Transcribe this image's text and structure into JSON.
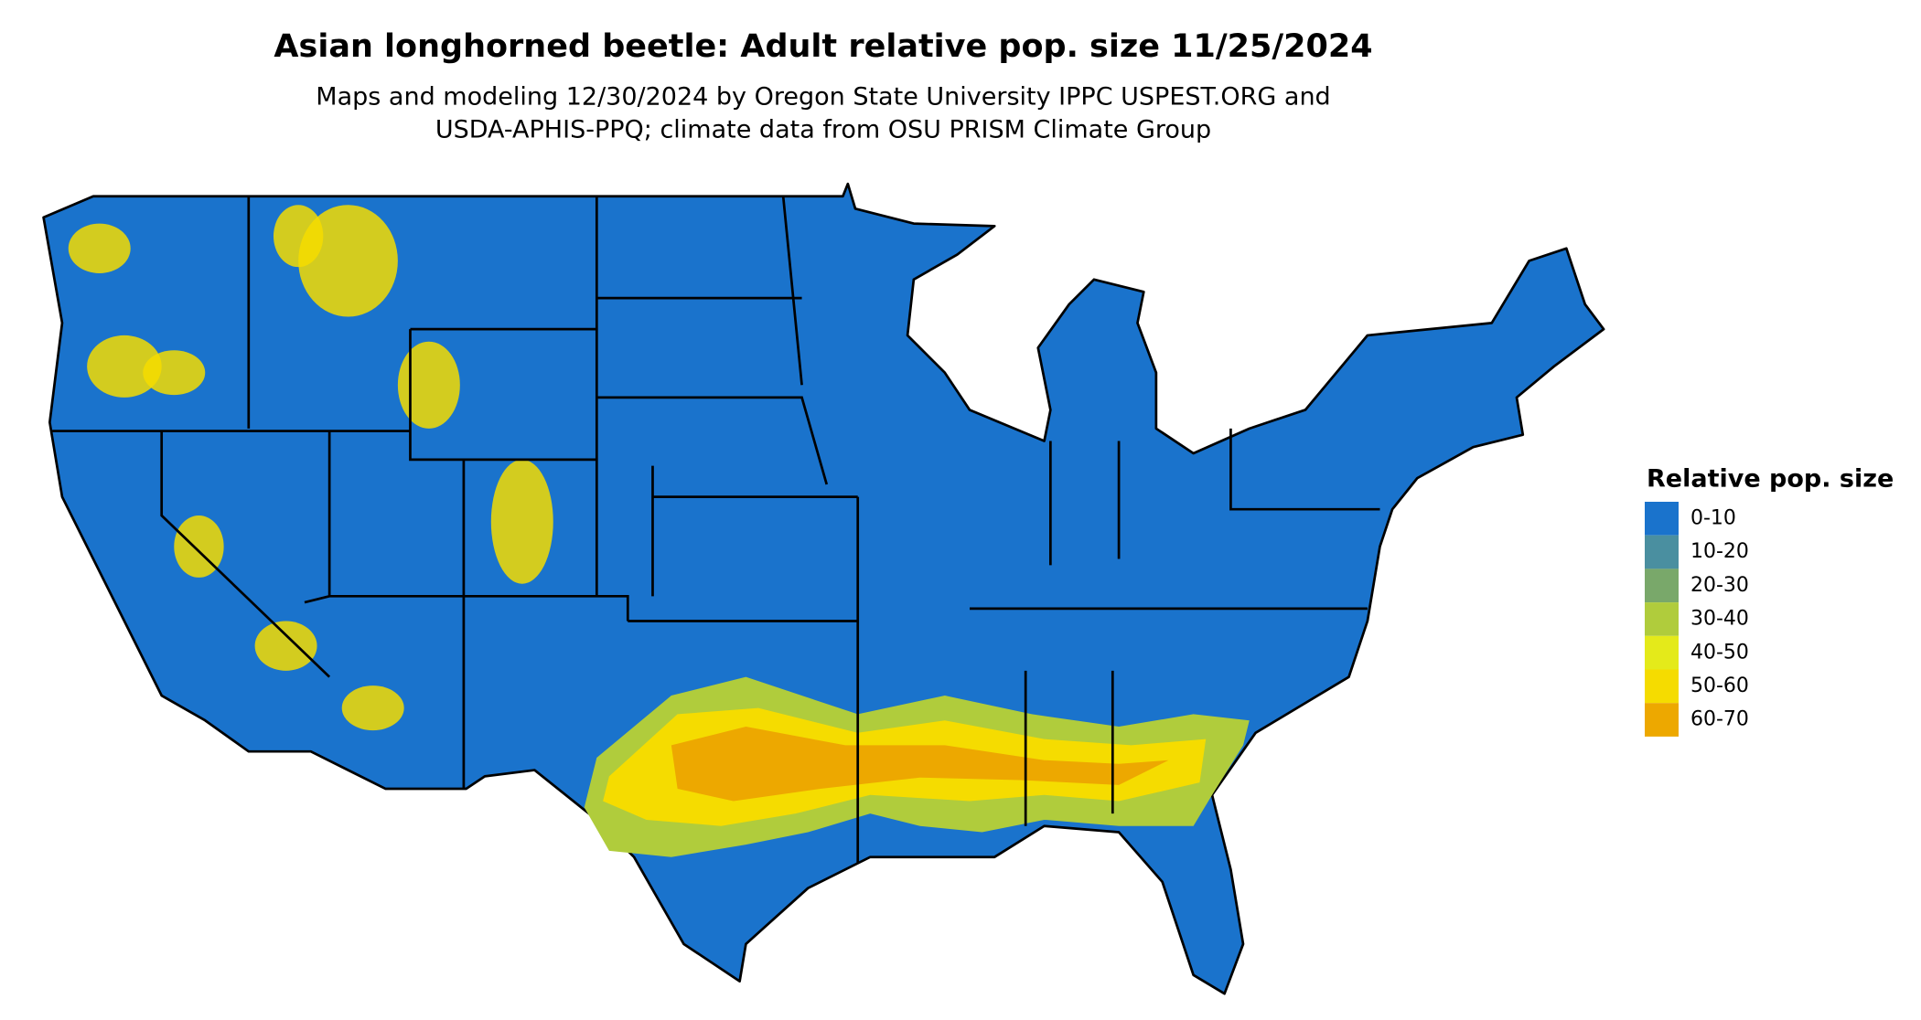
{
  "title": "Asian longhorned beetle: Adult relative pop. size 11/25/2024",
  "subtitle": [
    "Maps and modeling 12/30/2024 by Oregon State University IPPC USPEST.ORG and",
    "USDA-APHIS-PPQ; climate data from OSU PRISM Climate Group"
  ],
  "legend": {
    "title": "Relative pop. size",
    "items": [
      {
        "label": "0-10",
        "color": "#1a73cc"
      },
      {
        "label": "10-20",
        "color": "#4a8fa0"
      },
      {
        "label": "20-30",
        "color": "#79a86a"
      },
      {
        "label": "30-40",
        "color": "#b0cc3c"
      },
      {
        "label": "40-50",
        "color": "#e4ea1a"
      },
      {
        "label": "50-60",
        "color": "#f5dc00"
      },
      {
        "label": "60-70",
        "color": "#eda800"
      }
    ]
  }
}
